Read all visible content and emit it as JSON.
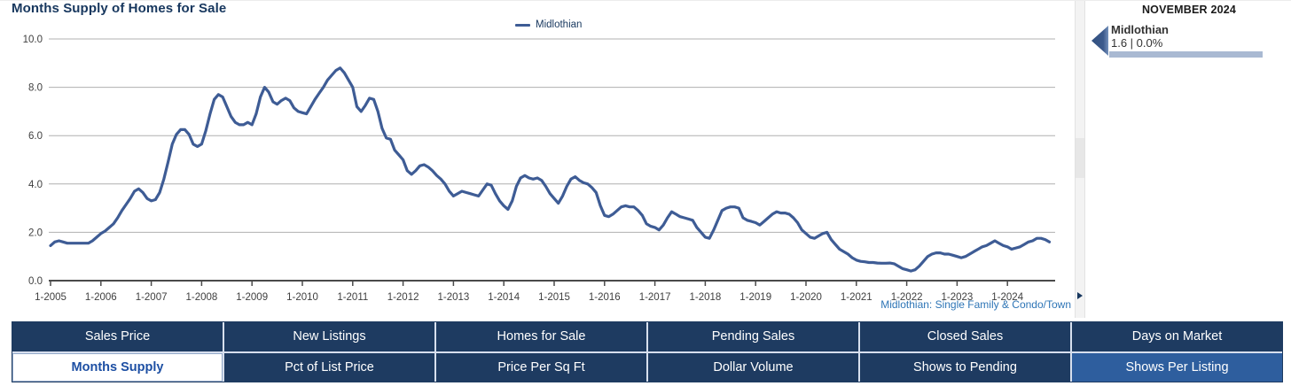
{
  "chart": {
    "title": "Months Supply of Homes for Sale",
    "legend_label": "Midlothian",
    "footnote": "Midlothian: Single Family & Condo/Town"
  },
  "chart_data": {
    "type": "line",
    "title": "Months Supply of Homes for Sale",
    "grid": "horizontal",
    "legend_position": "top-center",
    "ylim": [
      0,
      10
    ],
    "y_ticks": [
      0,
      2,
      4,
      6,
      8,
      10
    ],
    "y_tick_labels": [
      "0.0",
      "2.0",
      "4.0",
      "6.0",
      "8.0",
      "10.0"
    ],
    "x_tick_labels": [
      "1-2005",
      "1-2006",
      "1-2007",
      "1-2008",
      "1-2009",
      "1-2010",
      "1-2011",
      "1-2012",
      "1-2013",
      "1-2014",
      "1-2015",
      "1-2016",
      "1-2017",
      "1-2018",
      "1-2019",
      "1-2020",
      "1-2021",
      "1-2022",
      "1-2023",
      "1-2024"
    ],
    "series": [
      {
        "name": "Midlothian",
        "color": "#3e5c95",
        "interval": "monthly",
        "start": "Jan 2005",
        "end": "Nov 2024",
        "values": [
          1.45,
          1.6,
          1.65,
          1.6,
          1.55,
          1.55,
          1.55,
          1.55,
          1.55,
          1.55,
          1.65,
          1.8,
          1.95,
          2.05,
          2.2,
          2.35,
          2.6,
          2.9,
          3.15,
          3.4,
          3.7,
          3.8,
          3.65,
          3.4,
          3.3,
          3.35,
          3.65,
          4.2,
          4.9,
          5.65,
          6.05,
          6.25,
          6.25,
          6.05,
          5.65,
          5.55,
          5.65,
          6.2,
          6.9,
          7.5,
          7.7,
          7.6,
          7.2,
          6.8,
          6.55,
          6.45,
          6.45,
          6.55,
          6.45,
          6.9,
          7.6,
          8.0,
          7.8,
          7.4,
          7.3,
          7.45,
          7.55,
          7.45,
          7.15,
          7.0,
          6.95,
          6.9,
          7.2,
          7.5,
          7.75,
          8.0,
          8.3,
          8.5,
          8.7,
          8.8,
          8.6,
          8.3,
          8.0,
          7.2,
          7.0,
          7.25,
          7.55,
          7.5,
          7.0,
          6.3,
          5.9,
          5.85,
          5.4,
          5.2,
          5.0,
          4.55,
          4.4,
          4.55,
          4.75,
          4.8,
          4.7,
          4.55,
          4.35,
          4.2,
          4.0,
          3.7,
          3.5,
          3.6,
          3.7,
          3.65,
          3.6,
          3.55,
          3.5,
          3.75,
          4.0,
          3.95,
          3.6,
          3.3,
          3.1,
          2.95,
          3.3,
          3.9,
          4.25,
          4.35,
          4.25,
          4.2,
          4.25,
          4.15,
          3.9,
          3.6,
          3.4,
          3.2,
          3.5,
          3.9,
          4.2,
          4.3,
          4.15,
          4.05,
          4.0,
          3.85,
          3.65,
          3.1,
          2.7,
          2.65,
          2.75,
          2.9,
          3.05,
          3.1,
          3.05,
          3.05,
          2.9,
          2.7,
          2.35,
          2.25,
          2.2,
          2.1,
          2.3,
          2.6,
          2.85,
          2.75,
          2.65,
          2.6,
          2.55,
          2.5,
          2.2,
          2.0,
          1.8,
          1.75,
          2.1,
          2.5,
          2.9,
          3.0,
          3.05,
          3.05,
          3.0,
          2.6,
          2.5,
          2.45,
          2.4,
          2.3,
          2.45,
          2.6,
          2.75,
          2.85,
          2.8,
          2.8,
          2.75,
          2.6,
          2.4,
          2.1,
          1.95,
          1.8,
          1.75,
          1.85,
          1.95,
          2.0,
          1.7,
          1.5,
          1.3,
          1.2,
          1.1,
          0.95,
          0.85,
          0.8,
          0.78,
          0.75,
          0.75,
          0.73,
          0.72,
          0.72,
          0.73,
          0.7,
          0.6,
          0.5,
          0.45,
          0.4,
          0.45,
          0.6,
          0.8,
          1.0,
          1.1,
          1.15,
          1.15,
          1.1,
          1.1,
          1.05,
          1.0,
          0.95,
          1.0,
          1.1,
          1.2,
          1.3,
          1.4,
          1.45,
          1.55,
          1.65,
          1.55,
          1.45,
          1.4,
          1.3,
          1.35,
          1.4,
          1.5,
          1.6,
          1.65,
          1.75,
          1.75,
          1.7,
          1.6
        ]
      }
    ],
    "footnote": "Midlothian: Single Family & Condo/Town",
    "latest": {
      "period": "NOVEMBER 2024",
      "value": "1.6",
      "pct_change": "0.0%"
    }
  },
  "side_panel": {
    "heading": "NOVEMBER 2024",
    "series_name": "Midlothian",
    "value_text": "1.6 | 0.0%",
    "bar_color": "#a9b9d2"
  },
  "accents": {
    "tab_navy": "#1e3b61",
    "tab_light_blue": "#2e5e9e",
    "selected_tab_text": "#1d4fa3",
    "title_navy": "#17375e",
    "line_blue": "#3e5c95",
    "footnote_blue": "#2e75b6"
  },
  "tabs": {
    "items": [
      {
        "label": "Sales Price"
      },
      {
        "label": "New Listings"
      },
      {
        "label": "Homes for Sale"
      },
      {
        "label": "Pending Sales"
      },
      {
        "label": "Closed Sales"
      },
      {
        "label": "Days on Market"
      },
      {
        "label": "Months Supply",
        "selected": true
      },
      {
        "label": "Pct of List Price"
      },
      {
        "label": "Price Per Sq Ft"
      },
      {
        "label": "Dollar Volume"
      },
      {
        "label": "Shows to Pending"
      },
      {
        "label": "Shows Per Listing",
        "variant": "light"
      }
    ]
  }
}
